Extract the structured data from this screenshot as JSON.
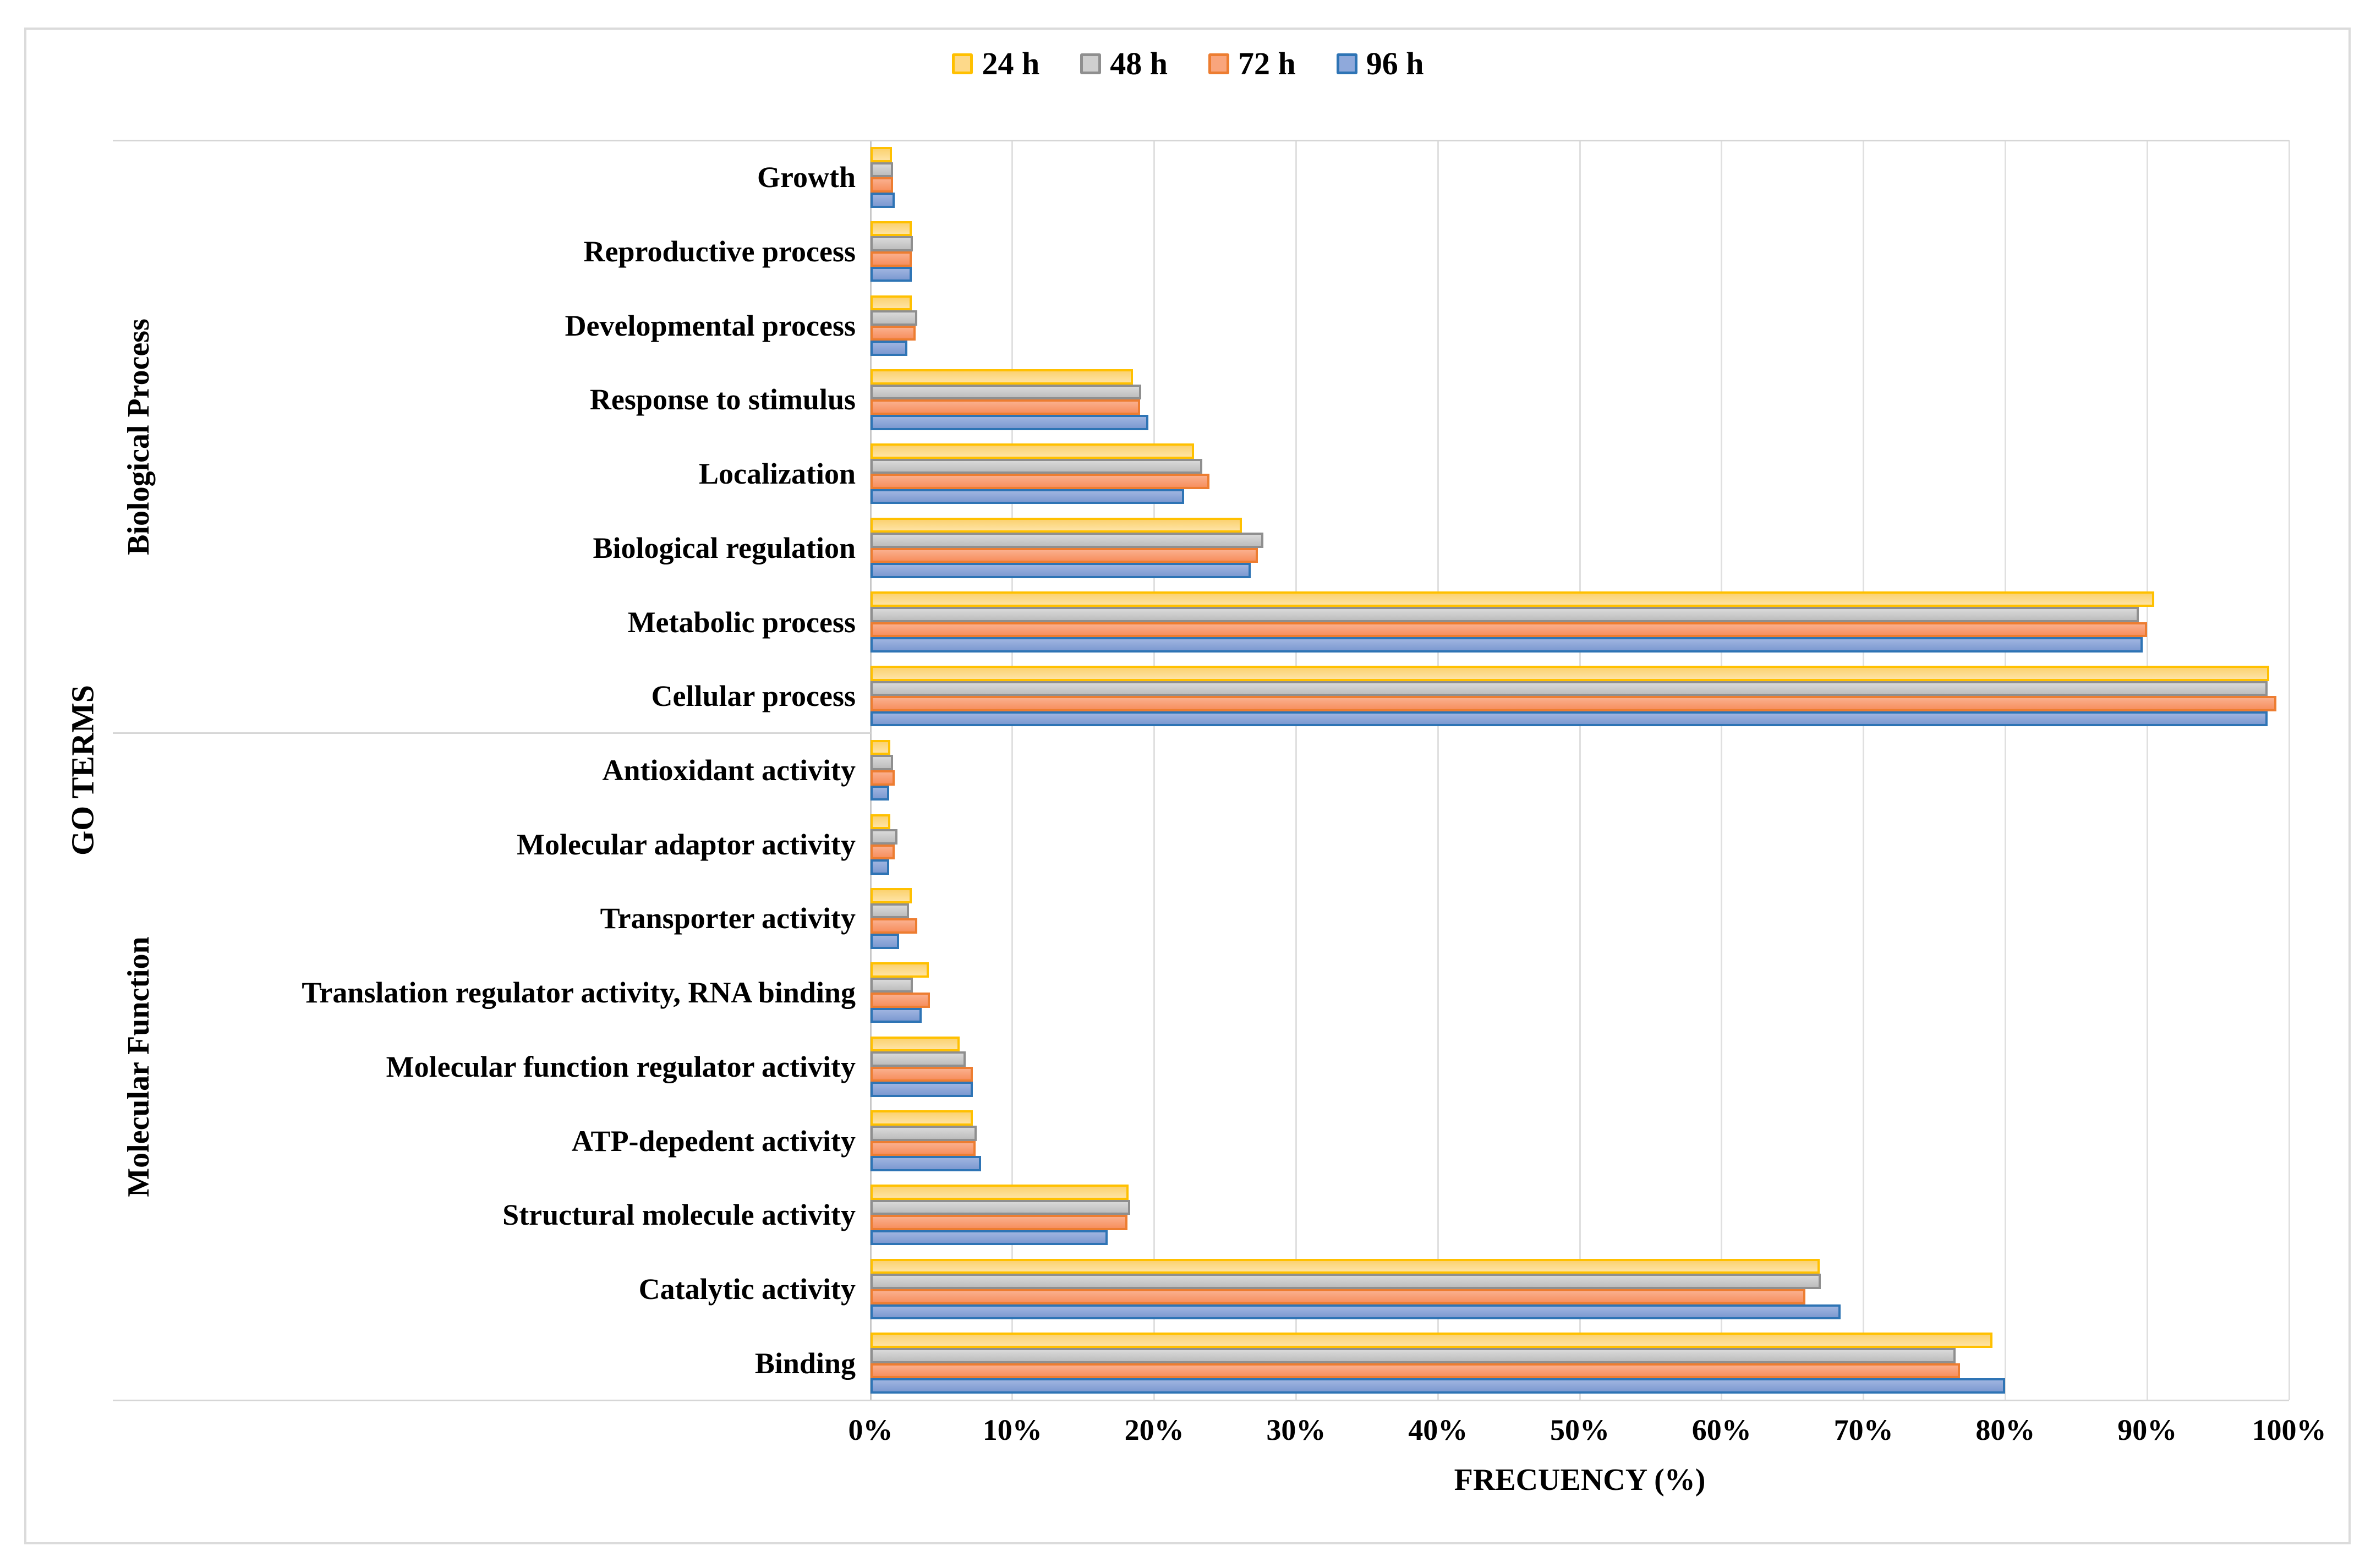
{
  "legend": {
    "items": [
      {
        "label": "24 h",
        "fill": "#FDD98A",
        "border": "#FFC000"
      },
      {
        "label": "48 h",
        "fill": "#CFCFCF",
        "border": "#8F8F8F"
      },
      {
        "label": "72 h",
        "fill": "#F9A57C",
        "border": "#ED7D31"
      },
      {
        "label": "96 h",
        "fill": "#8FA9DB",
        "border": "#2E74B5"
      }
    ]
  },
  "chart_data": {
    "type": "bar",
    "orientation": "horizontal",
    "title": "",
    "xlabel": "FRECUENCY (%)",
    "ylabel": "GO TERMS",
    "xlim": [
      0,
      100
    ],
    "x_ticks": [
      "0%",
      "10%",
      "20%",
      "30%",
      "40%",
      "50%",
      "60%",
      "70%",
      "80%",
      "90%",
      "100%"
    ],
    "grid": "vertical-gridlines-on",
    "legend_position": "top-center",
    "series_names": [
      "24 h",
      "48 h",
      "72 h",
      "96 h"
    ],
    "series_styles": [
      {
        "name": "24 h",
        "fill_top": "#FBD271",
        "fill_bottom": "#FEE3A4",
        "border": "#FFC000"
      },
      {
        "name": "48 h",
        "fill_top": "#D9D9D9",
        "fill_bottom": "#BEBEBE",
        "border": "#8F8F8F"
      },
      {
        "name": "72 h",
        "fill_top": "#FAAF8D",
        "fill_bottom": "#F7905F",
        "border": "#ED7D31"
      },
      {
        "name": "96 h",
        "fill_top": "#9FB4E0",
        "fill_bottom": "#7D9AD1",
        "border": "#2E74B5"
      }
    ],
    "groups": [
      {
        "label": "Biological Process",
        "rows": [
          {
            "category": "Growth",
            "values": [
              1.5,
              1.6,
              1.6,
              1.7
            ]
          },
          {
            "category": "Reproductive process",
            "values": [
              2.9,
              3.0,
              2.9,
              2.9
            ]
          },
          {
            "category": "Developmental process",
            "values": [
              2.9,
              3.3,
              3.2,
              2.6
            ]
          },
          {
            "category": "Response to stimulus",
            "values": [
              18.5,
              19.1,
              19.0,
              19.6
            ]
          },
          {
            "category": "Localization",
            "values": [
              22.8,
              23.4,
              23.9,
              22.1
            ]
          },
          {
            "category": "Biological regulation",
            "values": [
              26.2,
              27.7,
              27.3,
              26.8
            ]
          },
          {
            "category": "Metabolic process",
            "values": [
              90.5,
              89.4,
              90.0,
              89.7
            ]
          },
          {
            "category": "Cellular process",
            "values": [
              98.6,
              98.5,
              99.1,
              98.5
            ]
          }
        ]
      },
      {
        "label": "Molecular Function",
        "rows": [
          {
            "category": "Antioxidant activity",
            "values": [
              1.4,
              1.6,
              1.7,
              1.3
            ]
          },
          {
            "category": "Molecular adaptor activity",
            "values": [
              1.4,
              1.9,
              1.7,
              1.3
            ]
          },
          {
            "category": "Transporter activity",
            "values": [
              2.9,
              2.7,
              3.3,
              2.0
            ]
          },
          {
            "category": "Translation regulator activity, RNA binding",
            "values": [
              4.1,
              3.0,
              4.2,
              3.6
            ]
          },
          {
            "category": "Molecular function regulator activity",
            "values": [
              6.3,
              6.7,
              7.2,
              7.2
            ]
          },
          {
            "category": "ATP-depedent activity",
            "values": [
              7.2,
              7.5,
              7.4,
              7.8
            ]
          },
          {
            "category": "Structural molecule activity",
            "values": [
              18.2,
              18.3,
              18.1,
              16.7
            ]
          },
          {
            "category": "Catalytic activity",
            "values": [
              66.9,
              67.0,
              65.9,
              68.4
            ]
          },
          {
            "category": "Binding",
            "values": [
              79.1,
              76.5,
              76.8,
              80.0
            ]
          }
        ]
      }
    ]
  }
}
